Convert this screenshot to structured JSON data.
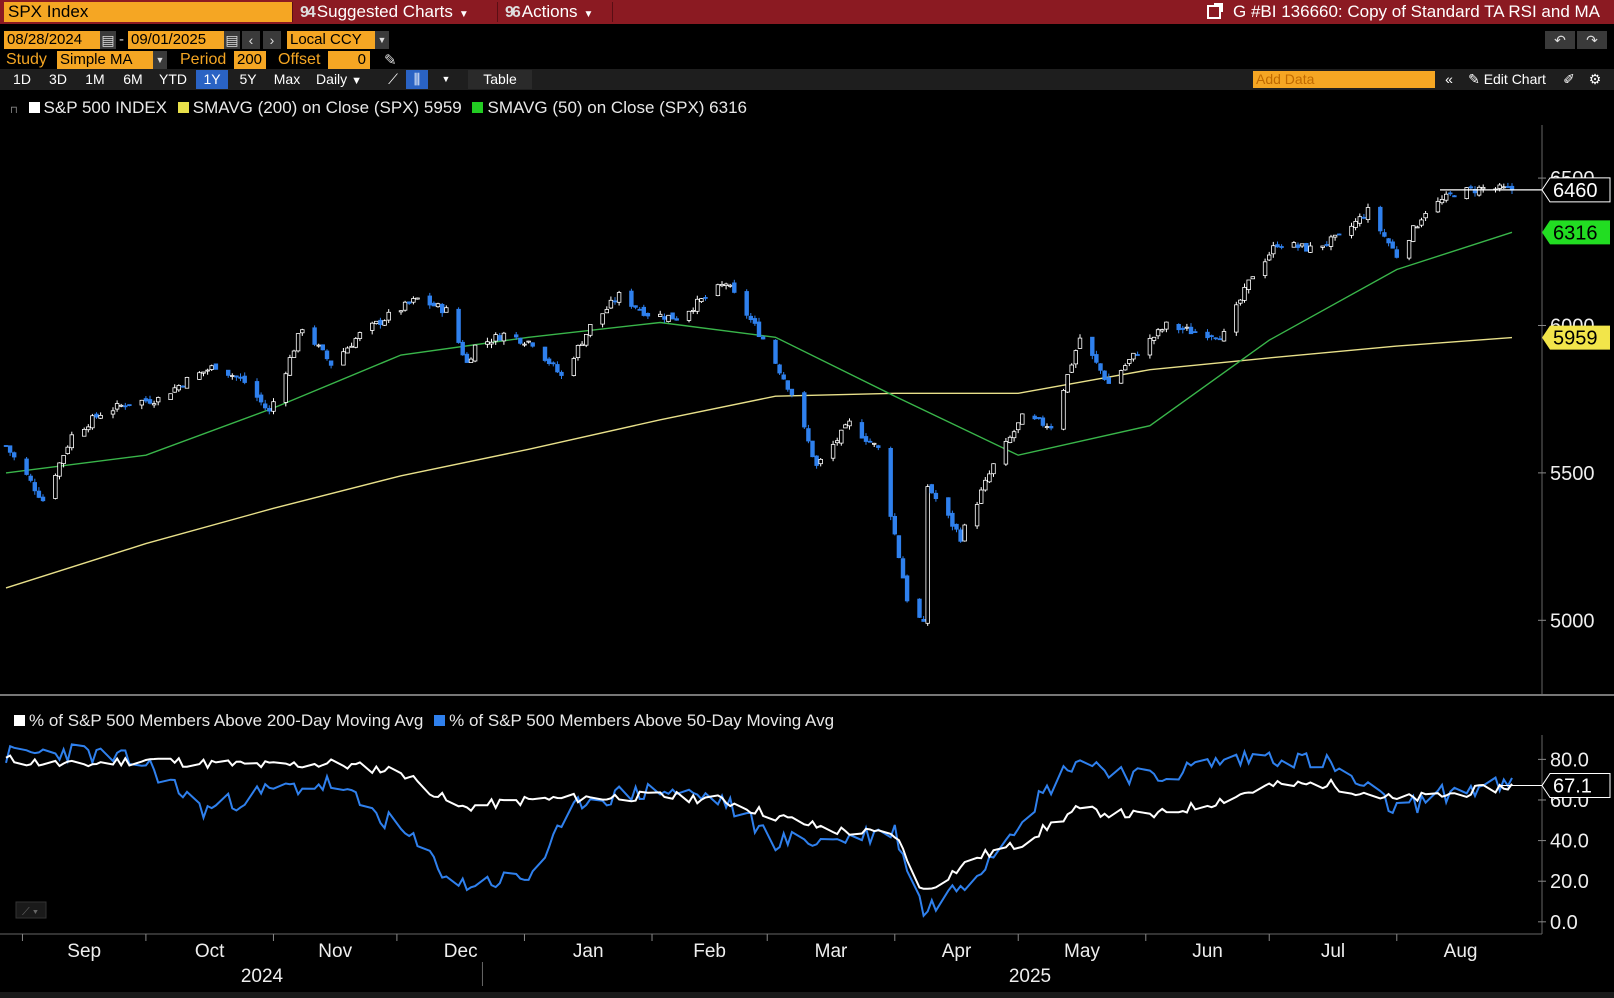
{
  "header": {
    "ticker": "SPX Index",
    "menu_suggested": "Suggested Charts",
    "menu_actions": "Actions",
    "chart_title": "G #BI 136660: Copy of Standard TA RSI and MA"
  },
  "controls": {
    "start_date": "08/28/2024",
    "end_date": "09/01/2025",
    "date_sep": "-",
    "currency": "Local CCY",
    "study_label": "Study",
    "study_value": "Simple MA",
    "period_label": "Period",
    "period_value": "200",
    "offset_label": "Offset",
    "offset_value": "0"
  },
  "toolbar": {
    "ranges": [
      "1D",
      "3D",
      "1M",
      "6M",
      "YTD",
      "1Y",
      "5Y",
      "Max"
    ],
    "selected_range": "1Y",
    "frequency": "Daily",
    "table_label": "Table",
    "add_data_placeholder": "Add Data",
    "edit_chart_label": "Edit Chart"
  },
  "colors": {
    "accent_orange": "#f5a623",
    "header_red": "#8b1a22",
    "candle_up": "#ffffff",
    "candle_down": "#2f80ed",
    "sma200": "#e8e08a",
    "sma50": "#39b54a",
    "breadth50": "#2f80ed",
    "breadth200": "#ffffff"
  },
  "chart_data": [
    {
      "type": "line",
      "title": "",
      "legend": [
        {
          "label": "S&P 500 INDEX",
          "color": "#ffffff"
        },
        {
          "label": "SMAVG (200)  on Close (SPX) 5959",
          "color": "#e8e04a"
        },
        {
          "label": "SMAVG (50)  on Close (SPX) 6316",
          "color": "#22cc22"
        }
      ],
      "yticks": [
        5000,
        5500,
        6000,
        6500
      ],
      "ylim": [
        4750,
        6680
      ],
      "xticks": [
        "Sep",
        "Oct",
        "Nov",
        "Dec",
        "Jan",
        "Feb",
        "Mar",
        "Apr",
        "May",
        "Jun",
        "Jul",
        "Aug"
      ],
      "years": [
        "2024",
        "2025"
      ],
      "last_value_labels": {
        "price": "6460",
        "sma50": "6316",
        "sma200": "5959"
      },
      "series": [
        {
          "name": "S&P 500 INDEX",
          "kind": "candlestick",
          "x": [
            "2024-08-28",
            "2024-09-06",
            "2024-09-13",
            "2024-09-20",
            "2024-09-27",
            "2024-10-04",
            "2024-10-11",
            "2024-10-18",
            "2024-10-25",
            "2024-10-31",
            "2024-11-08",
            "2024-11-15",
            "2024-11-22",
            "2024-11-29",
            "2024-12-06",
            "2024-12-13",
            "2024-12-18",
            "2024-12-20",
            "2024-12-27",
            "2025-01-03",
            "2025-01-10",
            "2025-01-17",
            "2025-01-24",
            "2025-01-31",
            "2025-02-07",
            "2025-02-19",
            "2025-02-28",
            "2025-03-07",
            "2025-03-13",
            "2025-03-21",
            "2025-03-28",
            "2025-04-04",
            "2025-04-08",
            "2025-04-09",
            "2025-04-17",
            "2025-04-25",
            "2025-05-02",
            "2025-05-09",
            "2025-05-16",
            "2025-05-23",
            "2025-05-30",
            "2025-06-06",
            "2025-06-13",
            "2025-06-20",
            "2025-06-27",
            "2025-07-03",
            "2025-07-11",
            "2025-07-18",
            "2025-07-25",
            "2025-08-01",
            "2025-08-08",
            "2025-08-15",
            "2025-08-22",
            "2025-08-29"
          ],
          "values": [
            5592,
            5408,
            5626,
            5702,
            5738,
            5751,
            5815,
            5864,
            5808,
            5705,
            5995,
            5870,
            5969,
            6032,
            6090,
            6051,
            5872,
            5930,
            5970,
            5942,
            5827,
            5997,
            6101,
            6040,
            6026,
            6144,
            5955,
            5770,
            5521,
            5667,
            5581,
            5074,
            4982,
            5456,
            5282,
            5525,
            5686,
            5660,
            5958,
            5803,
            5911,
            6000,
            5977,
            5968,
            6173,
            6279,
            6260,
            6297,
            6388,
            6238,
            6389,
            6449,
            6466,
            6460
          ]
        },
        {
          "name": "SMAVG (50)",
          "kind": "line",
          "x": [
            "2024-08-28",
            "2024-10-01",
            "2024-11-01",
            "2024-12-02",
            "2025-01-02",
            "2025-02-03",
            "2025-03-03",
            "2025-04-01",
            "2025-05-01",
            "2025-06-02",
            "2025-07-01",
            "2025-08-01",
            "2025-08-29"
          ],
          "values": [
            5500,
            5560,
            5720,
            5900,
            5960,
            6010,
            5960,
            5760,
            5560,
            5660,
            5950,
            6190,
            6316
          ]
        },
        {
          "name": "SMAVG (200)",
          "kind": "line",
          "x": [
            "2024-08-28",
            "2024-10-01",
            "2024-11-01",
            "2024-12-02",
            "2025-01-02",
            "2025-02-03",
            "2025-03-03",
            "2025-04-01",
            "2025-05-01",
            "2025-06-02",
            "2025-07-01",
            "2025-08-01",
            "2025-08-29"
          ],
          "values": [
            5110,
            5260,
            5380,
            5490,
            5580,
            5680,
            5760,
            5770,
            5770,
            5850,
            5890,
            5930,
            5959
          ]
        }
      ]
    },
    {
      "type": "line",
      "title": "",
      "legend": [
        {
          "label": "% of S&P 500 Members Above 200-Day Moving Avg",
          "color": "#ffffff"
        },
        {
          "label": "% of S&P 500 Members Above 50-Day Moving Avg",
          "color": "#2f80ed"
        }
      ],
      "yticks": [
        0.0,
        20.0,
        40.0,
        60.0,
        80.0
      ],
      "ytick_labels": [
        "0.0",
        "20.0",
        "40.0",
        "60.0",
        "80.0"
      ],
      "ylim": [
        -6,
        92
      ],
      "last_value_label": "67.1",
      "series": [
        {
          "name": "% of S&P 500 Members Above 200-Day Moving Avg",
          "x": [
            "2024-08-28",
            "2024-09-13",
            "2024-10-01",
            "2024-10-15",
            "2024-11-01",
            "2024-11-15",
            "2024-12-02",
            "2024-12-16",
            "2025-01-02",
            "2025-01-15",
            "2025-02-03",
            "2025-02-18",
            "2025-03-03",
            "2025-03-17",
            "2025-04-01",
            "2025-04-08",
            "2025-04-21",
            "2025-05-01",
            "2025-05-15",
            "2025-06-02",
            "2025-06-16",
            "2025-07-01",
            "2025-07-15",
            "2025-08-01",
            "2025-08-15",
            "2025-08-29"
          ],
          "values": [
            80,
            77,
            80,
            78,
            77,
            78,
            74,
            56,
            60,
            61,
            62,
            60,
            52,
            45,
            43,
            15,
            32,
            38,
            55,
            52,
            58,
            67,
            68,
            60,
            63,
            67.1
          ]
        },
        {
          "name": "% of S&P 500 Members Above 50-Day Moving Avg",
          "x": [
            "2024-08-28",
            "2024-09-13",
            "2024-10-01",
            "2024-10-15",
            "2024-11-01",
            "2024-11-15",
            "2024-12-02",
            "2024-12-16",
            "2025-01-02",
            "2025-01-15",
            "2025-02-03",
            "2025-02-18",
            "2025-03-03",
            "2025-03-17",
            "2025-04-01",
            "2025-04-08",
            "2025-04-21",
            "2025-05-01",
            "2025-05-15",
            "2025-06-02",
            "2025-06-16",
            "2025-07-01",
            "2025-07-15",
            "2025-08-01",
            "2025-08-15",
            "2025-08-29"
          ],
          "values": [
            82,
            84,
            78,
            55,
            65,
            68,
            45,
            18,
            22,
            60,
            65,
            60,
            40,
            40,
            45,
            5,
            25,
            50,
            80,
            70,
            78,
            82,
            78,
            55,
            65,
            67
          ]
        }
      ]
    }
  ]
}
